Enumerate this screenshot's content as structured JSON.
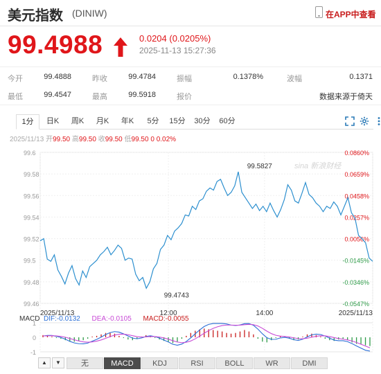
{
  "header": {
    "title": "美元指数",
    "code": "(DINIW)",
    "app_link": "在APP中查看",
    "icon": "phone-icon"
  },
  "quote": {
    "price": "99.4988",
    "direction_icon": "arrow-up-icon",
    "change": "0.0204 (0.0205%)",
    "time": "2025-11-13 15:27:36",
    "up_color": "#e0161a"
  },
  "stats": [
    {
      "label": "今开",
      "value": "99.4888"
    },
    {
      "label": "昨收",
      "value": "99.4784"
    },
    {
      "label": "振幅",
      "value": "0.1378%"
    },
    {
      "label": "波幅",
      "value": "0.1371"
    },
    {
      "label": "最低",
      "value": "99.4547"
    },
    {
      "label": "最高",
      "value": "99.5918"
    },
    {
      "label": "报价",
      "value": ""
    },
    {
      "label": "",
      "value": "数据来源于倚天"
    }
  ],
  "period_tabs": [
    "1分",
    "日K",
    "周K",
    "月K",
    "年K",
    "5分",
    "15分",
    "30分",
    "60分"
  ],
  "active_period": "1分",
  "tools": [
    "fullscreen-icon",
    "settings-icon",
    "more-icon"
  ],
  "info_line": {
    "date": "2025/11/13",
    "open_label": "开",
    "open": "99.50",
    "high_label": "高",
    "high": "99.50",
    "close_label": "收",
    "close": "99.50",
    "low_label": "低",
    "low": "99.50",
    "change": "0",
    "pct": "0.02%"
  },
  "watermark": "sina 新浪财经",
  "chart_data": {
    "type": "line",
    "y_ticks": [
      "99.6",
      "99.58",
      "99.56",
      "99.54",
      "99.52",
      "99.5",
      "99.48",
      "99.46"
    ],
    "pct_ticks": [
      "0.0860%",
      "0.0659%",
      "0.0458%",
      "0.0257%",
      "0.0056%",
      "-0.0145%",
      "-0.0346%",
      "-0.0547%"
    ],
    "ylim": [
      99.46,
      99.6
    ],
    "x_ticks": [
      "2025/11/13",
      "12:00",
      "14:00",
      "2025/11/13"
    ],
    "x_tick_positions": [
      0,
      0.3855,
      0.6747,
      1
    ],
    "annotations": [
      {
        "label": "99.5827",
        "value": 99.5827,
        "t": 0.66
      },
      {
        "label": "99.4743",
        "value": 99.4743,
        "t": 0.41
      }
    ],
    "series": [
      {
        "values": [
          99.518,
          99.52,
          99.501,
          99.499,
          99.505,
          99.491,
          99.485,
          99.478,
          99.488,
          99.495,
          99.483,
          99.477,
          99.49,
          99.484,
          99.494,
          99.497,
          99.5,
          99.505,
          99.508,
          99.512,
          99.505,
          99.509,
          99.514,
          99.511,
          99.5,
          99.502,
          99.501,
          99.487,
          99.481,
          99.484,
          99.474,
          99.48,
          99.492,
          99.497,
          99.51,
          99.514,
          99.523,
          99.519,
          99.527,
          99.53,
          99.534,
          99.542,
          99.541,
          99.55,
          99.547,
          99.555,
          99.557,
          99.564,
          99.567,
          99.565,
          99.573,
          99.575,
          99.567,
          99.56,
          99.563,
          99.569,
          99.582,
          99.563,
          99.558,
          99.553,
          99.548,
          99.552,
          99.546,
          99.55,
          99.545,
          99.553,
          99.546,
          99.54,
          99.547,
          99.556,
          99.57,
          99.565,
          99.555,
          99.553,
          99.562,
          99.572,
          99.561,
          99.558,
          99.553,
          99.55,
          99.545,
          99.55,
          99.548,
          99.554,
          99.55,
          99.542,
          99.55,
          99.558,
          99.544,
          99.539,
          99.523,
          99.52,
          99.516,
          99.502,
          99.499
        ]
      }
    ]
  },
  "macd": {
    "label": "MACD",
    "dif_label": "DIF:",
    "dif": "-0.0132",
    "dea_label": "DEA:",
    "dea": "-0.0105",
    "macd_label": "MACD:",
    "macd": "-0.0055",
    "y_ticks": [
      "1",
      "0",
      "-1"
    ],
    "dif_color": "#2b6fd6",
    "dea_color": "#c84ad6",
    "macd_color": "#c81d1d",
    "bars": [
      0.15,
      0.1,
      0.05,
      -0.05,
      -0.1,
      -0.2,
      -0.3,
      -0.3,
      -0.25,
      -0.2,
      -0.1,
      0.05,
      0.1,
      0.2,
      0.3,
      0.3,
      0.25,
      0.1,
      -0.05,
      -0.15,
      -0.2,
      -0.1,
      0.05,
      0.15,
      0.1,
      -0.05,
      -0.15,
      -0.25,
      -0.3,
      -0.4,
      -0.3,
      -0.1,
      0.1,
      0.3,
      0.45,
      0.55,
      0.6,
      0.55,
      0.5,
      0.45,
      0.4,
      0.3,
      0.25,
      0.3,
      0.4,
      0.5,
      0.4,
      0.2,
      -0.1,
      -0.3,
      -0.35,
      -0.2,
      -0.05,
      0.1,
      0.05,
      -0.1,
      -0.2,
      -0.15,
      0.05,
      0.2,
      0.25,
      0.15,
      0.05,
      -0.1,
      -0.2,
      -0.25,
      -0.15,
      -0.1,
      -0.2,
      -0.35,
      -0.45,
      -0.5,
      -0.55,
      -0.6
    ]
  },
  "indicator_tabs": [
    "无",
    "MACD",
    "KDJ",
    "RSI",
    "BOLL",
    "WR",
    "DMI"
  ],
  "active_indicator": "MACD",
  "scroll_buttons": [
    "▲",
    "▼"
  ]
}
